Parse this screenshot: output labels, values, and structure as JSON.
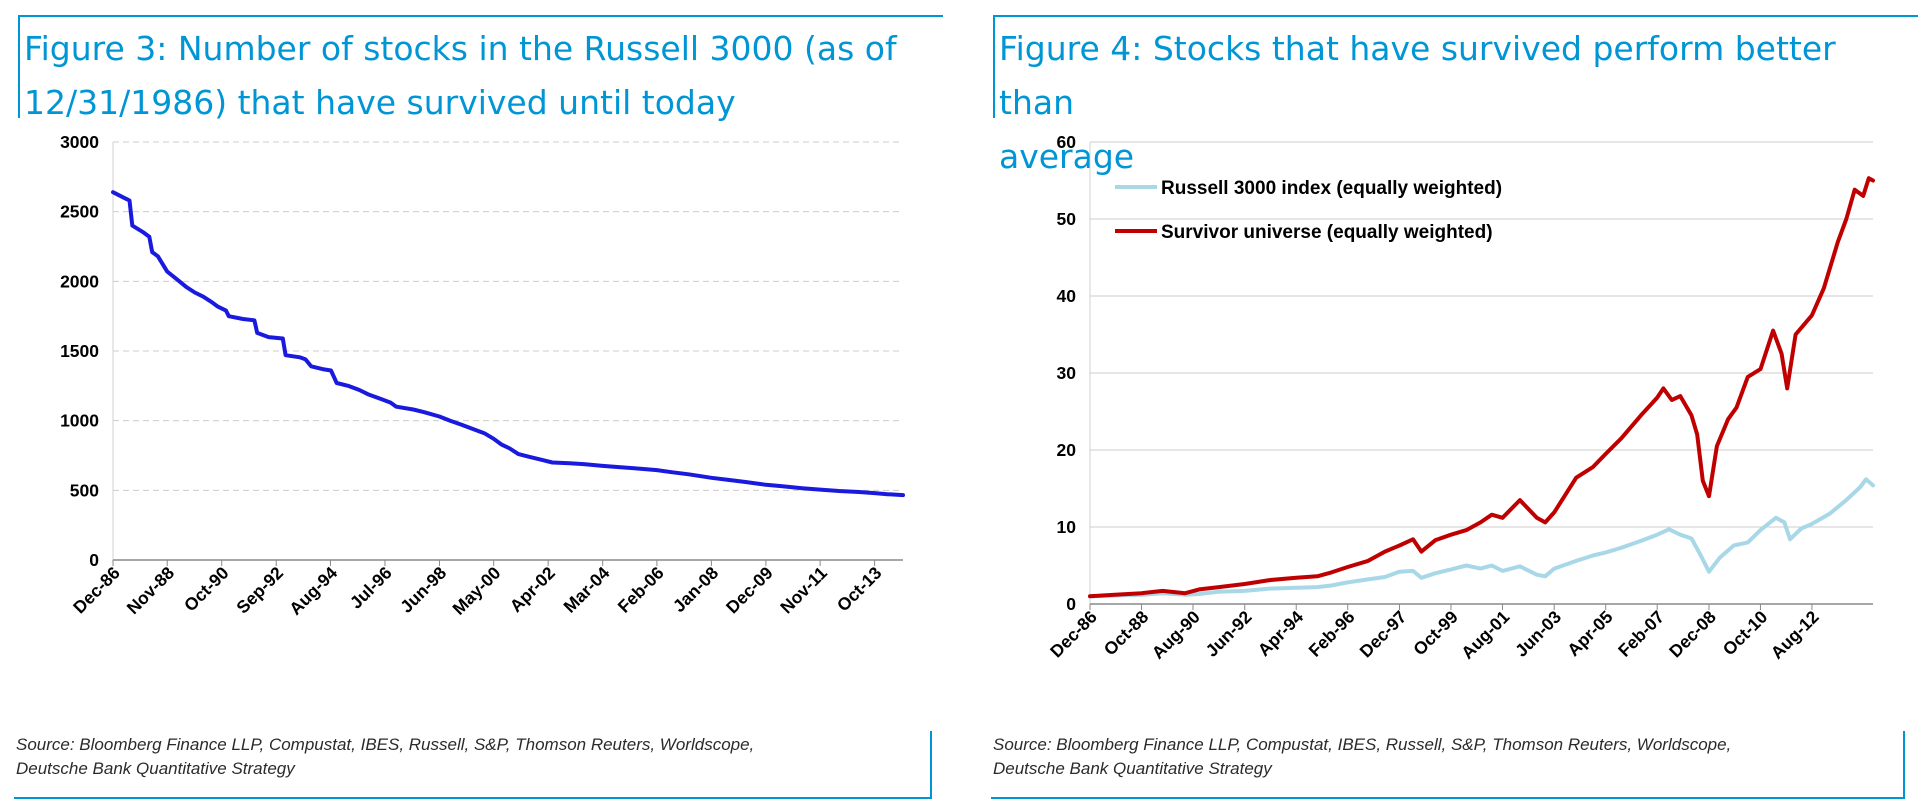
{
  "left": {
    "title_line1": "Figure 3: Number of stocks in the Russell 3000 (as of",
    "title_line2": "12/31/1986) that have survived until today",
    "source_line1": "Source: Bloomberg Finance LLP, Compustat, IBES, Russell, S&P, Thomson Reuters, Worldscope,",
    "source_line2": "Deutsche Bank Quantitative Strategy"
  },
  "right": {
    "title_line1": "Figure 4: Stocks that have survived perform better than",
    "title_line2": "average",
    "source_line1": "Source: Bloomberg Finance LLP, Compustat, IBES, Russell, S&P, Thomson Reuters, Worldscope,",
    "source_line2": "Deutsche Bank Quantitative Strategy"
  },
  "colors": {
    "accent": "#0096d6",
    "blue_line": "#1a1adf",
    "red_line": "#c00000",
    "lightblue_line": "#a8d8e8",
    "grid": "#cccccc"
  },
  "chart_data": [
    {
      "type": "line",
      "title": "Figure 3: Number of stocks in the Russell 3000 (as of 12/31/1986) that have survived until today",
      "xlabel": "",
      "ylabel": "",
      "ylim": [
        0,
        3000
      ],
      "yticks": [
        0,
        500,
        1000,
        1500,
        2000,
        2500,
        3000
      ],
      "xlim": [
        1986.92,
        2014.75
      ],
      "xticks": [
        {
          "label": "Dec-86",
          "x": 1986.92
        },
        {
          "label": "Nov-88",
          "x": 1988.83
        },
        {
          "label": "Oct-90",
          "x": 1990.75
        },
        {
          "label": "Sep-92",
          "x": 1992.67
        },
        {
          "label": "Aug-94",
          "x": 1994.58
        },
        {
          "label": "Jul-96",
          "x": 1996.5
        },
        {
          "label": "Jun-98",
          "x": 1998.42
        },
        {
          "label": "May-00",
          "x": 2000.33
        },
        {
          "label": "Apr-02",
          "x": 2002.25
        },
        {
          "label": "Mar-04",
          "x": 2004.17
        },
        {
          "label": "Feb-06",
          "x": 2006.08
        },
        {
          "label": "Jan-08",
          "x": 2008.0
        },
        {
          "label": "Dec-09",
          "x": 2009.92
        },
        {
          "label": "Nov-11",
          "x": 2011.83
        },
        {
          "label": "Oct-13",
          "x": 2013.75
        }
      ],
      "grid": true,
      "series": [
        {
          "values": [
            [
              1986.92,
              2640
            ],
            [
              1987.3,
              2600
            ],
            [
              1987.5,
              2580
            ],
            [
              1987.6,
              2400
            ],
            [
              1988.0,
              2350
            ],
            [
              1988.2,
              2320
            ],
            [
              1988.3,
              2210
            ],
            [
              1988.5,
              2180
            ],
            [
              1988.83,
              2070
            ],
            [
              1989.2,
              2010
            ],
            [
              1989.5,
              1960
            ],
            [
              1989.8,
              1920
            ],
            [
              1990.1,
              1890
            ],
            [
              1990.4,
              1850
            ],
            [
              1990.6,
              1820
            ],
            [
              1990.9,
              1790
            ],
            [
              1991.0,
              1750
            ],
            [
              1991.5,
              1730
            ],
            [
              1991.9,
              1720
            ],
            [
              1992.0,
              1630
            ],
            [
              1992.4,
              1600
            ],
            [
              1992.9,
              1590
            ],
            [
              1993.0,
              1470
            ],
            [
              1993.5,
              1455
            ],
            [
              1993.7,
              1440
            ],
            [
              1993.9,
              1390
            ],
            [
              1994.3,
              1370
            ],
            [
              1994.6,
              1360
            ],
            [
              1994.8,
              1270
            ],
            [
              1995.2,
              1250
            ],
            [
              1995.6,
              1220
            ],
            [
              1995.9,
              1190
            ],
            [
              1996.3,
              1160
            ],
            [
              1996.7,
              1130
            ],
            [
              1996.9,
              1100
            ],
            [
              1997.5,
              1080
            ],
            [
              1997.9,
              1060
            ],
            [
              1998.42,
              1030
            ],
            [
              1998.8,
              1000
            ],
            [
              1999.2,
              970
            ],
            [
              1999.6,
              940
            ],
            [
              2000.0,
              910
            ],
            [
              2000.33,
              870
            ],
            [
              2000.6,
              830
            ],
            [
              2000.9,
              800
            ],
            [
              2001.2,
              760
            ],
            [
              2001.6,
              740
            ],
            [
              2002.0,
              720
            ],
            [
              2002.4,
              700
            ],
            [
              2003.0,
              695
            ],
            [
              2003.5,
              688
            ],
            [
              2004.17,
              675
            ],
            [
              2004.8,
              665
            ],
            [
              2005.5,
              655
            ],
            [
              2006.08,
              645
            ],
            [
              2006.6,
              630
            ],
            [
              2007.2,
              615
            ],
            [
              2008.0,
              590
            ],
            [
              2008.6,
              575
            ],
            [
              2009.2,
              560
            ],
            [
              2009.92,
              540
            ],
            [
              2010.5,
              530
            ],
            [
              2011.2,
              515
            ],
            [
              2011.83,
              505
            ],
            [
              2012.5,
              495
            ],
            [
              2013.2,
              488
            ],
            [
              2013.75,
              480
            ],
            [
              2014.2,
              472
            ],
            [
              2014.75,
              466
            ]
          ]
        }
      ]
    },
    {
      "type": "line",
      "title": "Figure 4: Stocks that have survived perform better than average",
      "xlabel": "",
      "ylabel": "",
      "ylim": [
        0,
        60
      ],
      "yticks": [
        0,
        10,
        20,
        30,
        40,
        50,
        60
      ],
      "xlim": [
        1986.92,
        2014.75
      ],
      "xticks": [
        {
          "label": "Dec-86",
          "x": 1986.92
        },
        {
          "label": "Oct-88",
          "x": 1988.75
        },
        {
          "label": "Aug-90",
          "x": 1990.58
        },
        {
          "label": "Jun-92",
          "x": 1992.42
        },
        {
          "label": "Apr-94",
          "x": 1994.25
        },
        {
          "label": "Feb-96",
          "x": 1996.08
        },
        {
          "label": "Dec-97",
          "x": 1997.92
        },
        {
          "label": "Oct-99",
          "x": 1999.75
        },
        {
          "label": "Aug-01",
          "x": 2001.58
        },
        {
          "label": "Jun-03",
          "x": 2003.42
        },
        {
          "label": "Apr-05",
          "x": 2005.25
        },
        {
          "label": "Feb-07",
          "x": 2007.08
        },
        {
          "label": "Dec-08",
          "x": 2008.92
        },
        {
          "label": "Oct-10",
          "x": 2010.75
        },
        {
          "label": "Aug-12",
          "x": 2012.58
        }
      ],
      "grid": true,
      "legend_position": "top-left",
      "series": [
        {
          "name": "Russell 3000 index (equally weighted)",
          "values": [
            [
              1986.92,
              1.0
            ],
            [
              1987.8,
              1.1
            ],
            [
              1988.75,
              1.2
            ],
            [
              1989.5,
              1.4
            ],
            [
              1990.3,
              1.2
            ],
            [
              1990.8,
              1.3
            ],
            [
              1991.5,
              1.6
            ],
            [
              1992.42,
              1.7
            ],
            [
              1993.3,
              2.0
            ],
            [
              1994.25,
              2.1
            ],
            [
              1995.0,
              2.2
            ],
            [
              1995.5,
              2.4
            ],
            [
              1996.08,
              2.8
            ],
            [
              1996.8,
              3.2
            ],
            [
              1997.4,
              3.5
            ],
            [
              1997.92,
              4.2
            ],
            [
              1998.4,
              4.3
            ],
            [
              1998.7,
              3.4
            ],
            [
              1999.2,
              4.0
            ],
            [
              1999.75,
              4.5
            ],
            [
              2000.3,
              5.0
            ],
            [
              2000.8,
              4.6
            ],
            [
              2001.2,
              5.0
            ],
            [
              2001.58,
              4.3
            ],
            [
              2002.2,
              4.9
            ],
            [
              2002.8,
              3.8
            ],
            [
              2003.1,
              3.6
            ],
            [
              2003.42,
              4.6
            ],
            [
              2004.2,
              5.6
            ],
            [
              2004.8,
              6.3
            ],
            [
              2005.25,
              6.7
            ],
            [
              2005.8,
              7.3
            ],
            [
              2006.5,
              8.2
            ],
            [
              2007.08,
              9.0
            ],
            [
              2007.5,
              9.7
            ],
            [
              2007.9,
              9.0
            ],
            [
              2008.3,
              8.5
            ],
            [
              2008.6,
              6.5
            ],
            [
              2008.92,
              4.2
            ],
            [
              2009.3,
              6.0
            ],
            [
              2009.8,
              7.6
            ],
            [
              2010.3,
              8.0
            ],
            [
              2010.75,
              9.6
            ],
            [
              2011.3,
              11.2
            ],
            [
              2011.6,
              10.6
            ],
            [
              2011.8,
              8.4
            ],
            [
              2012.2,
              9.8
            ],
            [
              2012.58,
              10.4
            ],
            [
              2013.2,
              11.7
            ],
            [
              2013.8,
              13.5
            ],
            [
              2014.3,
              15.2
            ],
            [
              2014.5,
              16.2
            ],
            [
              2014.75,
              15.4
            ]
          ]
        },
        {
          "name": "Survivor universe (equally weighted)",
          "values": [
            [
              1986.92,
              1.0
            ],
            [
              1987.8,
              1.2
            ],
            [
              1988.75,
              1.4
            ],
            [
              1989.5,
              1.7
            ],
            [
              1990.3,
              1.4
            ],
            [
              1990.8,
              1.9
            ],
            [
              1991.5,
              2.2
            ],
            [
              1992.42,
              2.6
            ],
            [
              1993.3,
              3.1
            ],
            [
              1994.25,
              3.4
            ],
            [
              1995.0,
              3.6
            ],
            [
              1995.5,
              4.1
            ],
            [
              1996.08,
              4.8
            ],
            [
              1996.8,
              5.6
            ],
            [
              1997.4,
              6.8
            ],
            [
              1997.92,
              7.6
            ],
            [
              1998.4,
              8.4
            ],
            [
              1998.7,
              6.8
            ],
            [
              1999.2,
              8.3
            ],
            [
              1999.75,
              9.0
            ],
            [
              2000.3,
              9.6
            ],
            [
              2000.8,
              10.6
            ],
            [
              2001.2,
              11.6
            ],
            [
              2001.58,
              11.2
            ],
            [
              2002.2,
              13.5
            ],
            [
              2002.8,
              11.2
            ],
            [
              2003.1,
              10.6
            ],
            [
              2003.42,
              11.9
            ],
            [
              2004.2,
              16.4
            ],
            [
              2004.8,
              17.8
            ],
            [
              2005.25,
              19.5
            ],
            [
              2005.8,
              21.5
            ],
            [
              2006.5,
              24.5
            ],
            [
              2007.08,
              26.8
            ],
            [
              2007.3,
              28.0
            ],
            [
              2007.6,
              26.5
            ],
            [
              2007.9,
              27.0
            ],
            [
              2008.3,
              24.5
            ],
            [
              2008.5,
              22.0
            ],
            [
              2008.7,
              16.0
            ],
            [
              2008.92,
              14.0
            ],
            [
              2009.2,
              20.5
            ],
            [
              2009.6,
              24.0
            ],
            [
              2009.9,
              25.5
            ],
            [
              2010.3,
              29.5
            ],
            [
              2010.75,
              30.5
            ],
            [
              2011.2,
              35.5
            ],
            [
              2011.5,
              32.5
            ],
            [
              2011.7,
              28.0
            ],
            [
              2012.0,
              35.0
            ],
            [
              2012.58,
              37.5
            ],
            [
              2013.0,
              41.0
            ],
            [
              2013.5,
              47.0
            ],
            [
              2013.8,
              50.0
            ],
            [
              2014.1,
              53.8
            ],
            [
              2014.4,
              53.0
            ],
            [
              2014.6,
              55.3
            ],
            [
              2014.75,
              55.0
            ]
          ]
        }
      ]
    }
  ]
}
